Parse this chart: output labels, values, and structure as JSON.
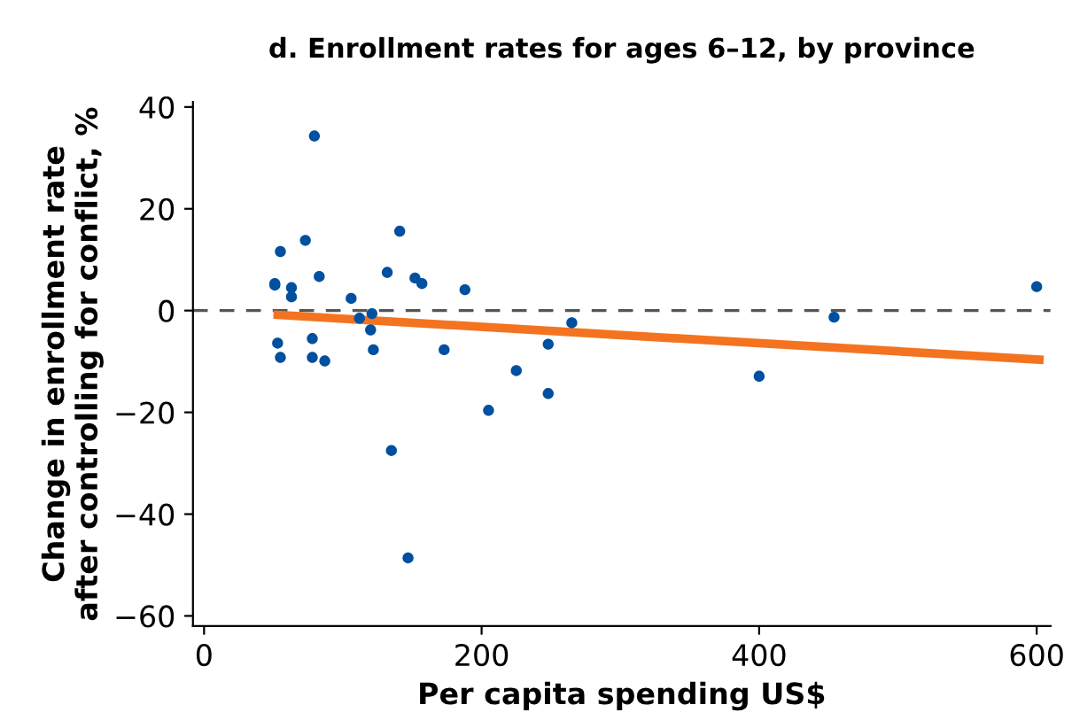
{
  "chart_data": {
    "type": "scatter",
    "title": "d. Enrollment rates for ages 6–12, by province",
    "xlabel": "Per capita spending US$",
    "ylabel": "Change in enrollment rate\nafter controlling for conflict, %",
    "xlim": [
      -8,
      610
    ],
    "ylim": [
      -62,
      41
    ],
    "xticks": [
      0,
      200,
      400,
      600
    ],
    "yticks": [
      -60,
      -40,
      -20,
      0,
      20,
      40
    ],
    "grid": false,
    "legend": false,
    "ref_lines": [
      {
        "axis": "y",
        "value": 0,
        "color": "#555555",
        "line_style": "dashed"
      }
    ],
    "series": [
      {
        "marker": "circle",
        "color": "#0050a0",
        "x": [
          51,
          55,
          53,
          55,
          51,
          63,
          63,
          73,
          79.5,
          83,
          78,
          78,
          87,
          106,
          112,
          121,
          120,
          122,
          132,
          141,
          152,
          157,
          135,
          147,
          173,
          188,
          205,
          225,
          248,
          248,
          265,
          400,
          454,
          600
        ],
        "values": [
          5.0,
          11.6,
          -6.4,
          -9.2,
          5.3,
          4.5,
          2.7,
          13.8,
          34.3,
          6.7,
          -5.5,
          -9.2,
          -9.9,
          2.4,
          -1.5,
          -0.6,
          -3.8,
          -7.7,
          7.5,
          15.6,
          6.4,
          5.3,
          -27.5,
          -48.6,
          -7.7,
          4.1,
          -19.6,
          -11.8,
          -6.6,
          -16.3,
          -2.4,
          -12.9,
          -1.3,
          4.7
        ]
      },
      {
        "type": "line",
        "color": "#f47320",
        "x": [
          50,
          605
        ],
        "values": [
          -0.8,
          -9.7
        ]
      }
    ]
  }
}
